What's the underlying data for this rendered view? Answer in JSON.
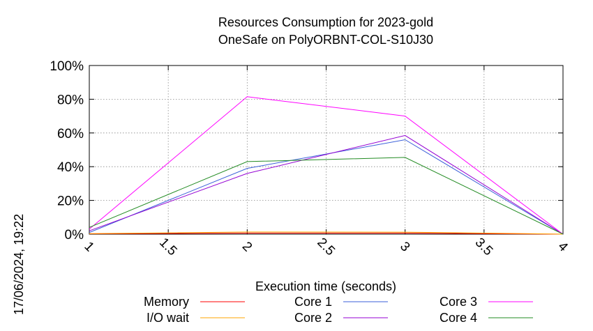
{
  "timestamp": "17/06/2024, 19:22",
  "chart_data": {
    "type": "line",
    "title": "Resources Consumption for 2023-gold",
    "subtitle": "OneSafe on PolyORBNT-COL-S10J30",
    "xlabel": "Execution time (seconds)",
    "ylabel": "",
    "xlim": [
      1,
      4
    ],
    "ylim": [
      0,
      100
    ],
    "x_ticks": [
      1,
      1.5,
      2,
      2.5,
      3,
      3.5,
      4
    ],
    "x_tick_labels": [
      "1",
      "1.5",
      "2",
      "2.5",
      "3",
      "3.5",
      "4"
    ],
    "y_ticks": [
      0,
      20,
      40,
      60,
      80,
      100
    ],
    "y_tick_labels": [
      "0%",
      "20%",
      "40%",
      "60%",
      "80%",
      "100%"
    ],
    "grid": true,
    "legend_position": "bottom",
    "x": [
      1,
      2,
      3,
      4
    ],
    "series": [
      {
        "name": "Memory",
        "color": "#ff0000",
        "values": [
          0.2,
          0.6,
          0.6,
          0
        ]
      },
      {
        "name": "I/O wait",
        "color": "#ffa500",
        "values": [
          0.3,
          1.3,
          1.2,
          0
        ]
      },
      {
        "name": "Core 1",
        "color": "#3b5fd9",
        "values": [
          1,
          39,
          56,
          0
        ]
      },
      {
        "name": "Core 2",
        "color": "#9400d3",
        "values": [
          2,
          36,
          58.5,
          0
        ]
      },
      {
        "name": "Core 3",
        "color": "#ff00ff",
        "values": [
          3,
          81.5,
          70,
          0
        ]
      },
      {
        "name": "Core 4",
        "color": "#228b22",
        "values": [
          4,
          43,
          45.5,
          0
        ]
      }
    ]
  }
}
